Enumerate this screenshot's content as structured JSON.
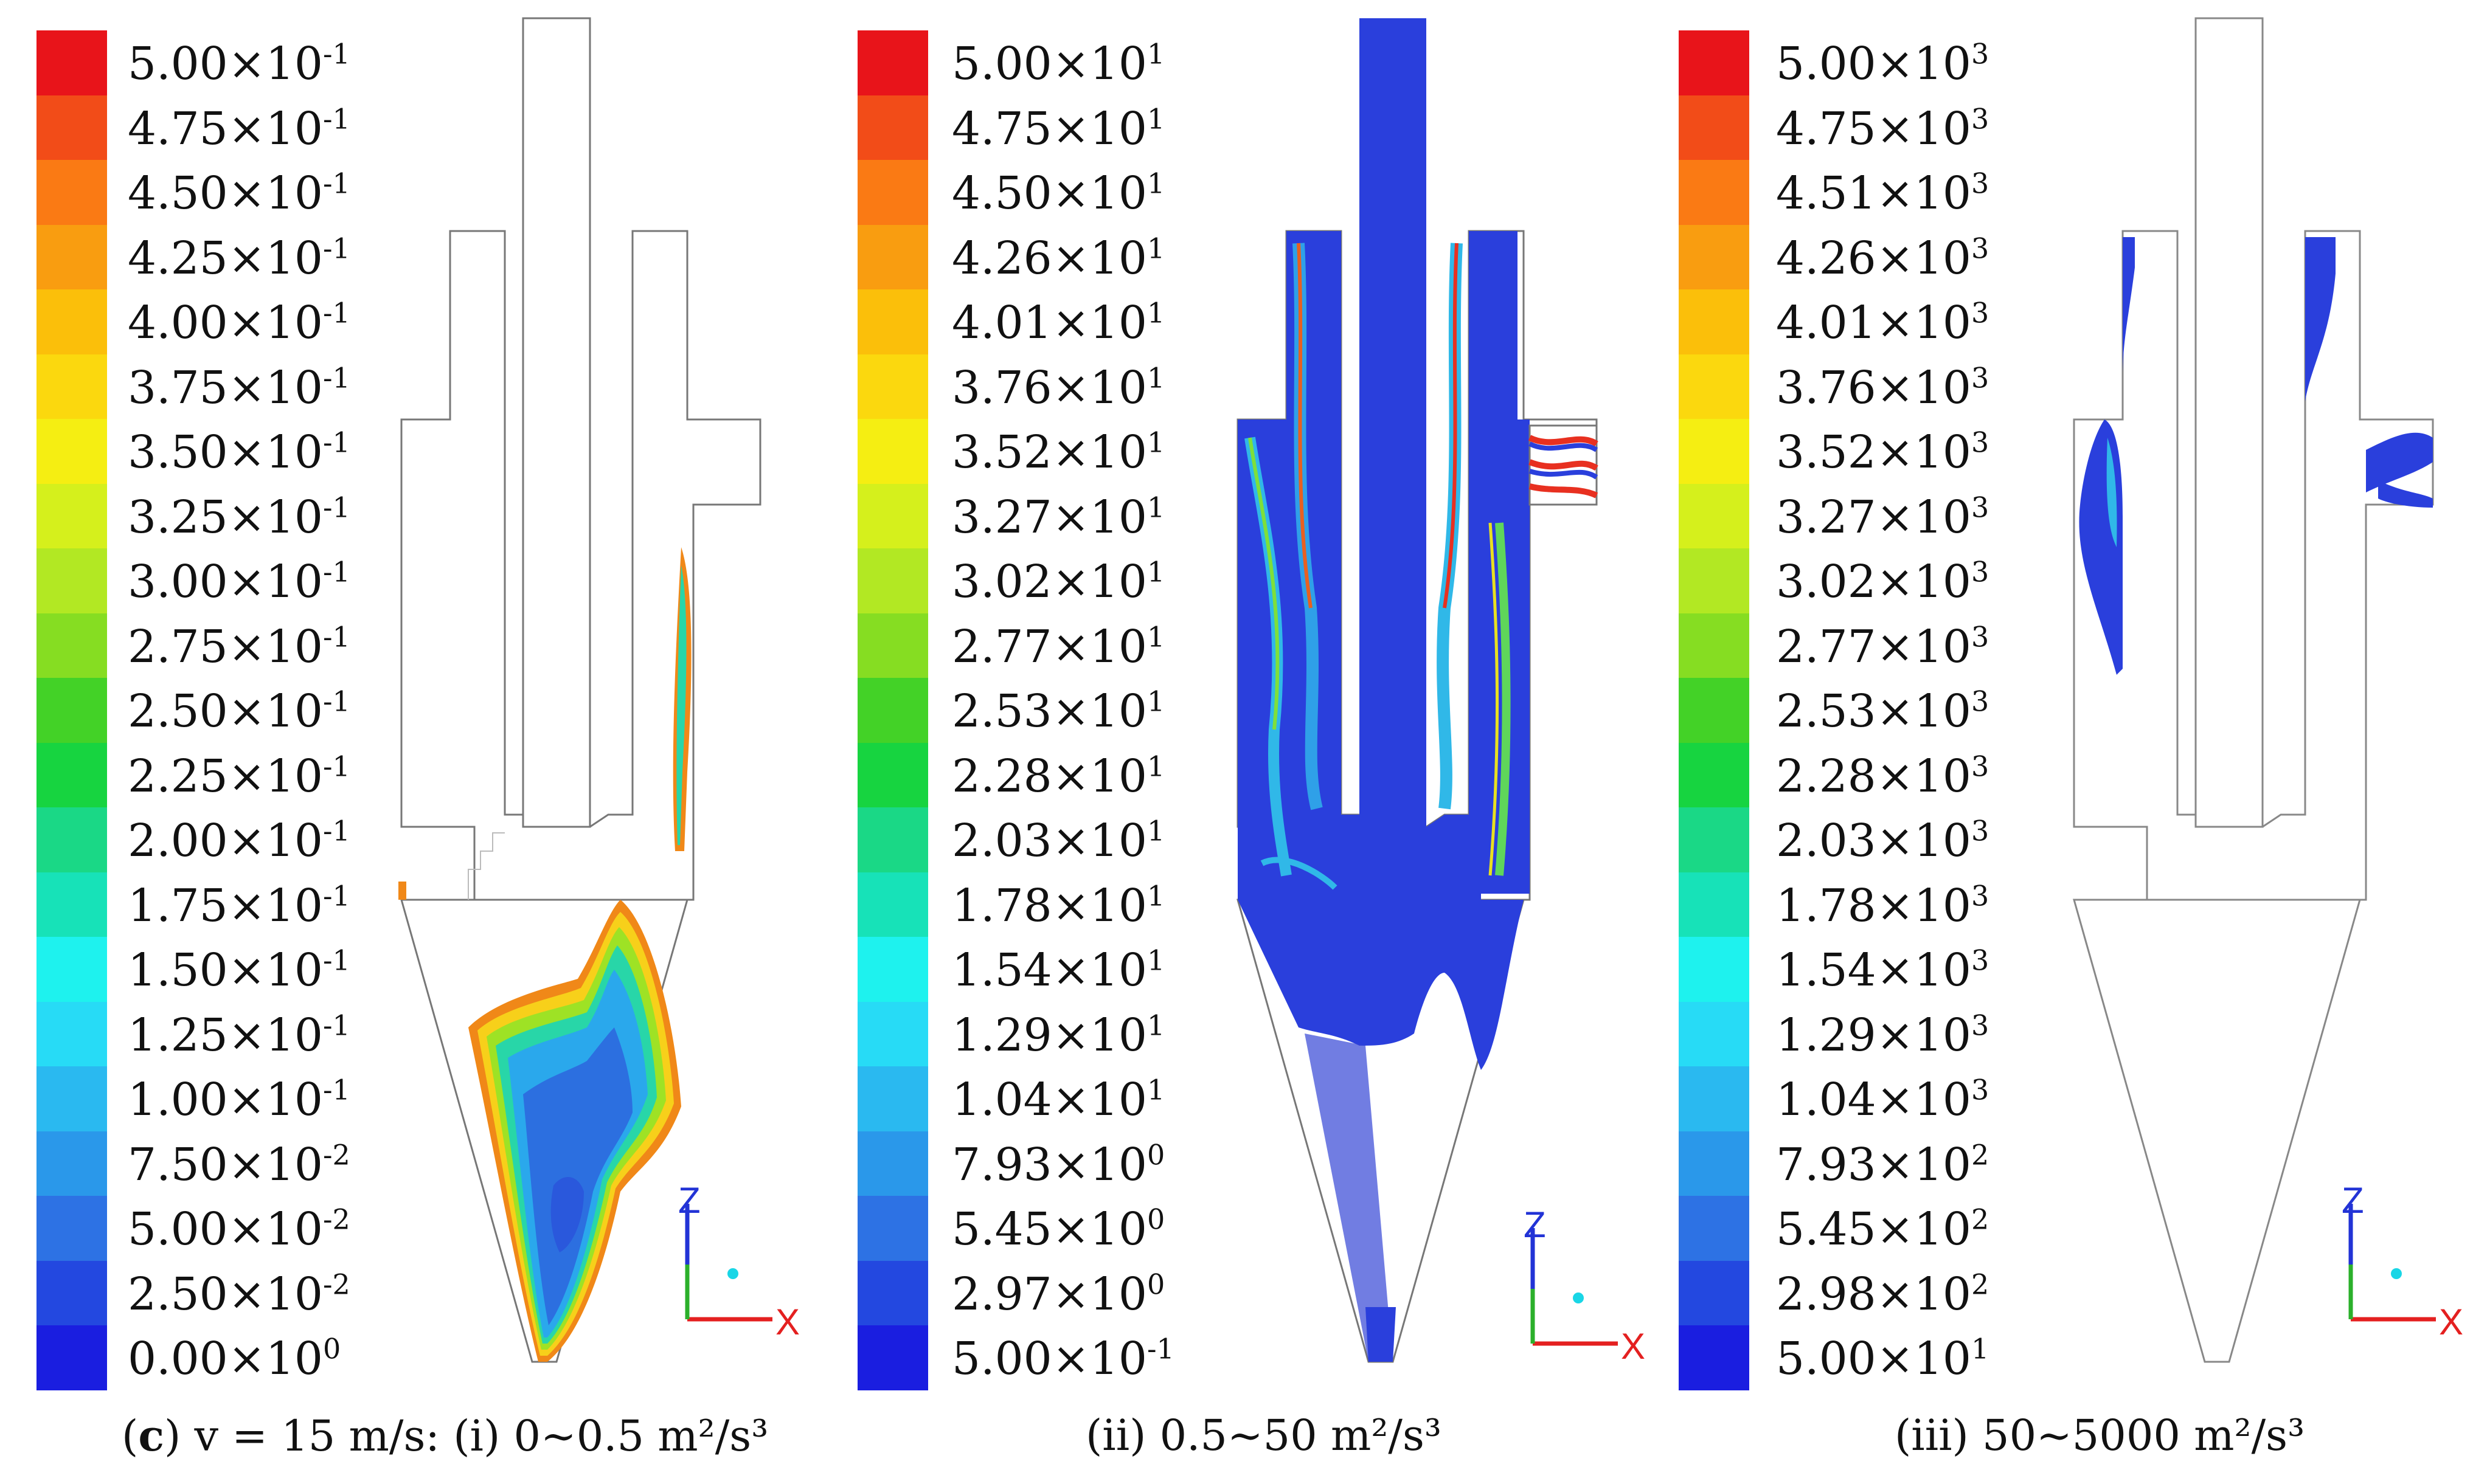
{
  "colors": [
    "#e8141a",
    "#f24c18",
    "#fa7a14",
    "#f99d10",
    "#fbbf0a",
    "#fbd80e",
    "#f5ee12",
    "#d5f01c",
    "#b2e823",
    "#86dd22",
    "#43d227",
    "#17d440",
    "#1ad886",
    "#17e2b8",
    "#1ef2ee",
    "#27dbf6",
    "#2ab9f0",
    "#2a98ea",
    "#2d72e4",
    "#2348e0",
    "#1a1ee0"
  ],
  "panels": [
    {
      "name": "i",
      "labels": [
        {
          "m": "5.00",
          "e": "-1"
        },
        {
          "m": "4.75",
          "e": "-1"
        },
        {
          "m": "4.50",
          "e": "-1"
        },
        {
          "m": "4.25",
          "e": "-1"
        },
        {
          "m": "4.00",
          "e": "-1"
        },
        {
          "m": "3.75",
          "e": "-1"
        },
        {
          "m": "3.50",
          "e": "-1"
        },
        {
          "m": "3.25",
          "e": "-1"
        },
        {
          "m": "3.00",
          "e": "-1"
        },
        {
          "m": "2.75",
          "e": "-1"
        },
        {
          "m": "2.50",
          "e": "-1"
        },
        {
          "m": "2.25",
          "e": "-1"
        },
        {
          "m": "2.00",
          "e": "-1"
        },
        {
          "m": "1.75",
          "e": "-1"
        },
        {
          "m": "1.50",
          "e": "-1"
        },
        {
          "m": "1.25",
          "e": "-1"
        },
        {
          "m": "1.00",
          "e": "-1"
        },
        {
          "m": "7.50",
          "e": "-2"
        },
        {
          "m": "5.00",
          "e": "-2"
        },
        {
          "m": "2.50",
          "e": "-2"
        },
        {
          "m": "0.00",
          "e": "0"
        }
      ]
    },
    {
      "name": "ii",
      "labels": [
        {
          "m": "5.00",
          "e": "1"
        },
        {
          "m": "4.75",
          "e": "1"
        },
        {
          "m": "4.50",
          "e": "1"
        },
        {
          "m": "4.26",
          "e": "1"
        },
        {
          "m": "4.01",
          "e": "1"
        },
        {
          "m": "3.76",
          "e": "1"
        },
        {
          "m": "3.52",
          "e": "1"
        },
        {
          "m": "3.27",
          "e": "1"
        },
        {
          "m": "3.02",
          "e": "1"
        },
        {
          "m": "2.77",
          "e": "1"
        },
        {
          "m": "2.53",
          "e": "1"
        },
        {
          "m": "2.28",
          "e": "1"
        },
        {
          "m": "2.03",
          "e": "1"
        },
        {
          "m": "1.78",
          "e": "1"
        },
        {
          "m": "1.54",
          "e": "1"
        },
        {
          "m": "1.29",
          "e": "1"
        },
        {
          "m": "1.04",
          "e": "1"
        },
        {
          "m": "7.93",
          "e": "0"
        },
        {
          "m": "5.45",
          "e": "0"
        },
        {
          "m": "2.97",
          "e": "0"
        },
        {
          "m": "5.00",
          "e": "-1"
        }
      ]
    },
    {
      "name": "iii",
      "labels": [
        {
          "m": "5.00",
          "e": "3"
        },
        {
          "m": "4.75",
          "e": "3"
        },
        {
          "m": "4.51",
          "e": "3"
        },
        {
          "m": "4.26",
          "e": "3"
        },
        {
          "m": "4.01",
          "e": "3"
        },
        {
          "m": "3.76",
          "e": "3"
        },
        {
          "m": "3.52",
          "e": "3"
        },
        {
          "m": "3.27",
          "e": "3"
        },
        {
          "m": "3.02",
          "e": "3"
        },
        {
          "m": "2.77",
          "e": "3"
        },
        {
          "m": "2.53",
          "e": "3"
        },
        {
          "m": "2.28",
          "e": "3"
        },
        {
          "m": "2.03",
          "e": "3"
        },
        {
          "m": "1.78",
          "e": "3"
        },
        {
          "m": "1.54",
          "e": "3"
        },
        {
          "m": "1.29",
          "e": "3"
        },
        {
          "m": "1.04",
          "e": "3"
        },
        {
          "m": "7.93",
          "e": "2"
        },
        {
          "m": "5.45",
          "e": "2"
        },
        {
          "m": "2.98",
          "e": "2"
        },
        {
          "m": "5.00",
          "e": "1"
        }
      ]
    }
  ],
  "captions": {
    "c1_bold": "c",
    "c1_rest": "v = 15 m/s: (i) 0~0.5 m²/s³",
    "c2": "(ii) 0.5~50 m²/s³",
    "c3": "(iii) 50~5000 m²/s³"
  },
  "axis": {
    "z": "Z",
    "x": "X"
  }
}
